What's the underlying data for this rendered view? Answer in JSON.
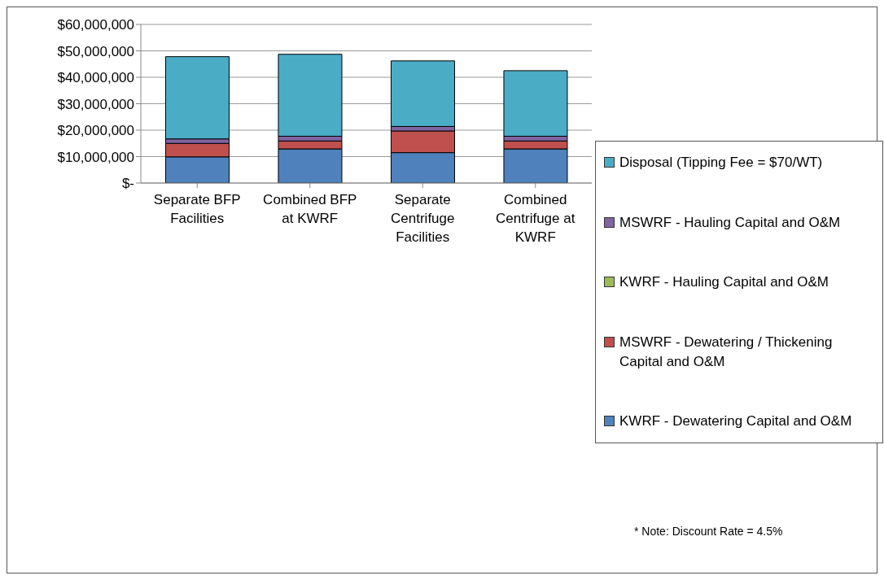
{
  "chart_data": {
    "type": "bar",
    "stacked": true,
    "categories": [
      "Separate BFP Facilities",
      "Combined BFP at KWRF",
      "Separate Centrifuge Facilities",
      "Combined Centrifuge at KWRF"
    ],
    "series": [
      {
        "name": "KWRF - Dewatering Capital and O&M",
        "color": "#4f81bd",
        "values": [
          9900000,
          12900000,
          11500000,
          12900000
        ]
      },
      {
        "name": "MSWRF - Dewatering / Thickening Capital and O&M",
        "color": "#c0504d",
        "values": [
          5100000,
          3000000,
          8200000,
          3000000
        ]
      },
      {
        "name": "KWRF - Hauling Capital and O&M",
        "color": "#9bbb59",
        "values": [
          0,
          0,
          0,
          0
        ]
      },
      {
        "name": "MSWRF - Hauling Capital and O&M",
        "color": "#8064a2",
        "values": [
          1700000,
          1800000,
          1700000,
          1800000
        ]
      },
      {
        "name": "Disposal (Tipping Fee = $70/WT)",
        "color": "#4bacc6",
        "values": [
          31100000,
          31000000,
          24800000,
          24800000
        ]
      }
    ],
    "ylim": [
      0,
      60000000
    ],
    "yticks": [
      {
        "value": 0,
        "label": "$-"
      },
      {
        "value": 10000000,
        "label": "$10,000,000"
      },
      {
        "value": 20000000,
        "label": "$20,000,000"
      },
      {
        "value": 30000000,
        "label": "$30,000,000"
      },
      {
        "value": 40000000,
        "label": "$40,000,000"
      },
      {
        "value": 50000000,
        "label": "$50,000,000"
      },
      {
        "value": 60000000,
        "label": "$60,000,000"
      }
    ],
    "grid": "y",
    "legend": "right",
    "annotations": [
      "* Note: Discount Rate = 4.5%"
    ]
  }
}
